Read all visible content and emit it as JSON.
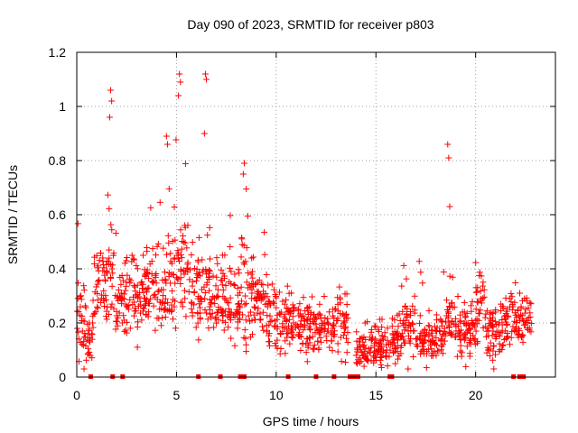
{
  "chart_data": {
    "type": "scatter",
    "title": "Day 090 of 2023, SRMTID for receiver p803",
    "xlabel": "GPS time / hours",
    "ylabel": "SRMTID / TECUs",
    "xlim": [
      0,
      24
    ],
    "ylim": [
      0,
      1.2
    ],
    "x_ticks": [
      0,
      5,
      10,
      15,
      20
    ],
    "y_ticks": [
      0,
      0.2,
      0.4,
      0.6,
      0.8,
      1,
      1.2
    ],
    "x_tick_labels": [
      "0",
      "5",
      "10",
      "15",
      "20"
    ],
    "y_tick_labels": [
      "0",
      "0.2",
      "0.4",
      "0.6",
      "0.8",
      "1",
      "1.2"
    ],
    "grid": true,
    "marker": "plus",
    "color": "#ff0000",
    "series_name": "SRMTID",
    "envelope_description": "dense noisy scatter; approximate median and spread per time window",
    "envelope": [
      {
        "x0": 0.0,
        "x1": 0.5,
        "median": 0.22,
        "spread": 0.1,
        "max": 0.57
      },
      {
        "x0": 0.5,
        "x1": 0.8,
        "median": 0.13,
        "spread": 0.05,
        "max": 0.2
      },
      {
        "x0": 0.8,
        "x1": 1.5,
        "median": 0.32,
        "spread": 0.09,
        "max": 0.55
      },
      {
        "x0": 1.5,
        "x1": 1.9,
        "median": 0.42,
        "spread": 0.15,
        "max": 1.06
      },
      {
        "x0": 1.9,
        "x1": 2.5,
        "median": 0.28,
        "spread": 0.09,
        "max": 0.55
      },
      {
        "x0": 2.5,
        "x1": 3.5,
        "median": 0.3,
        "spread": 0.08,
        "max": 0.45
      },
      {
        "x0": 3.5,
        "x1": 4.5,
        "median": 0.34,
        "spread": 0.1,
        "max": 0.65
      },
      {
        "x0": 4.5,
        "x1": 5.0,
        "median": 0.36,
        "spread": 0.12,
        "max": 0.89
      },
      {
        "x0": 5.0,
        "x1": 5.6,
        "median": 0.4,
        "spread": 0.12,
        "max": 1.12
      },
      {
        "x0": 5.6,
        "x1": 6.2,
        "median": 0.3,
        "spread": 0.1,
        "max": 0.55
      },
      {
        "x0": 6.2,
        "x1": 6.7,
        "median": 0.3,
        "spread": 0.12,
        "max": 1.12
      },
      {
        "x0": 6.7,
        "x1": 7.5,
        "median": 0.28,
        "spread": 0.08,
        "max": 0.5
      },
      {
        "x0": 7.5,
        "x1": 8.2,
        "median": 0.26,
        "spread": 0.08,
        "max": 0.62
      },
      {
        "x0": 8.2,
        "x1": 8.6,
        "median": 0.32,
        "spread": 0.12,
        "max": 0.79
      },
      {
        "x0": 8.6,
        "x1": 9.5,
        "median": 0.28,
        "spread": 0.08,
        "max": 0.58
      },
      {
        "x0": 9.5,
        "x1": 10.2,
        "median": 0.22,
        "spread": 0.07,
        "max": 0.45
      },
      {
        "x0": 10.2,
        "x1": 11.5,
        "median": 0.2,
        "spread": 0.06,
        "max": 0.35
      },
      {
        "x0": 11.5,
        "x1": 13.0,
        "median": 0.18,
        "spread": 0.06,
        "max": 0.3
      },
      {
        "x0": 13.0,
        "x1": 13.6,
        "median": 0.22,
        "spread": 0.08,
        "max": 0.47
      },
      {
        "x0": 14.0,
        "x1": 15.0,
        "median": 0.1,
        "spread": 0.04,
        "max": 0.22
      },
      {
        "x0": 15.0,
        "x1": 16.0,
        "median": 0.12,
        "spread": 0.05,
        "max": 0.22
      },
      {
        "x0": 16.0,
        "x1": 17.0,
        "median": 0.18,
        "spread": 0.07,
        "max": 0.44
      },
      {
        "x0": 17.0,
        "x1": 18.5,
        "median": 0.15,
        "spread": 0.05,
        "max": 0.44
      },
      {
        "x0": 18.5,
        "x1": 18.9,
        "median": 0.22,
        "spread": 0.08,
        "max": 0.86
      },
      {
        "x0": 18.9,
        "x1": 20.0,
        "median": 0.16,
        "spread": 0.06,
        "max": 0.3
      },
      {
        "x0": 20.0,
        "x1": 20.5,
        "median": 0.25,
        "spread": 0.08,
        "max": 0.48
      },
      {
        "x0": 20.5,
        "x1": 21.5,
        "median": 0.17,
        "spread": 0.06,
        "max": 0.3
      },
      {
        "x0": 21.5,
        "x1": 22.0,
        "median": 0.22,
        "spread": 0.07,
        "max": 0.35
      },
      {
        "x0": 22.0,
        "x1": 22.8,
        "median": 0.2,
        "spread": 0.06,
        "max": 0.31
      }
    ],
    "zero_markers_x": [
      0.7,
      1.8,
      2.3,
      6.1,
      7.2,
      8.2,
      8.4,
      10.6,
      12.0,
      12.9,
      13.7,
      13.8,
      13.9,
      14.0,
      14.1,
      15.7,
      15.8,
      21.9,
      22.2,
      22.4
    ],
    "spikes": [
      {
        "x": 1.7,
        "y": 1.06
      },
      {
        "x": 1.75,
        "y": 1.02
      },
      {
        "x": 1.65,
        "y": 0.96
      },
      {
        "x": 5.15,
        "y": 1.12
      },
      {
        "x": 5.2,
        "y": 1.09
      },
      {
        "x": 5.1,
        "y": 1.04
      },
      {
        "x": 6.45,
        "y": 1.12
      },
      {
        "x": 6.5,
        "y": 1.1
      },
      {
        "x": 6.4,
        "y": 0.9
      },
      {
        "x": 4.5,
        "y": 0.89
      },
      {
        "x": 4.55,
        "y": 0.86
      },
      {
        "x": 8.4,
        "y": 0.79
      },
      {
        "x": 8.35,
        "y": 0.75
      },
      {
        "x": 18.6,
        "y": 0.86
      },
      {
        "x": 18.65,
        "y": 0.81
      },
      {
        "x": 18.7,
        "y": 0.63
      }
    ]
  }
}
